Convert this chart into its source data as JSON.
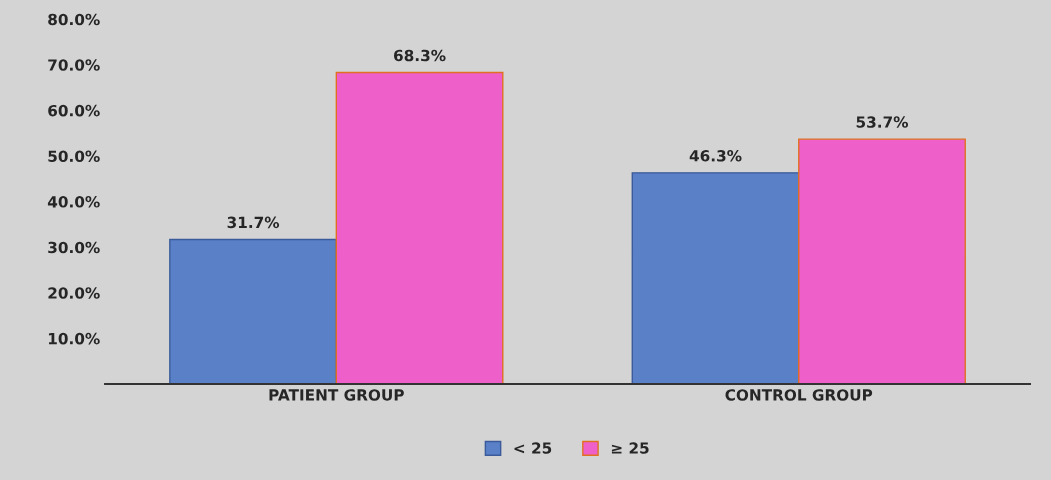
{
  "chart_data": {
    "type": "bar",
    "categories": [
      "PATIENT GROUP",
      "CONTROL GROUP"
    ],
    "series": [
      {
        "name": "< 25",
        "color": "#5a80c8",
        "values": [
          31.7,
          46.3
        ],
        "value_labels": [
          "31.7%",
          "46.3%"
        ]
      },
      {
        "name": "≥ 25",
        "color": "#ee5fca",
        "values": [
          68.3,
          53.7
        ],
        "value_labels": [
          "68.3%",
          "53.7%"
        ]
      }
    ],
    "ylim": [
      0,
      80
    ],
    "yticks": [
      {
        "value": 0,
        "label": null
      },
      {
        "value": 10,
        "label": "10.0%"
      },
      {
        "value": 20,
        "label": "20.0%"
      },
      {
        "value": 30,
        "label": "30.0%"
      },
      {
        "value": 40,
        "label": "40.0%"
      },
      {
        "value": 50,
        "label": "50.0%"
      },
      {
        "value": 60,
        "label": "60.0%"
      },
      {
        "value": 70,
        "label": "70.0%"
      },
      {
        "value": 80,
        "label": "80.0%"
      }
    ],
    "grid": false,
    "legend": "bottom"
  }
}
